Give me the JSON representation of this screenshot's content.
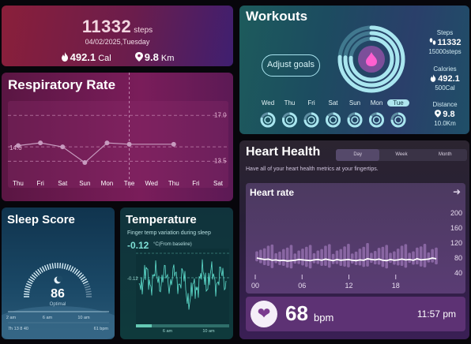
{
  "steps": {
    "count": "11332",
    "unit": "steps",
    "date": "04/02/2025,Tuesday",
    "calories_value": "492.1",
    "calories_unit": "Cal",
    "distance_value": "9.8",
    "distance_unit": "Km",
    "icons": {
      "calories": "flame-icon",
      "distance": "location-pin-icon"
    }
  },
  "respiratory": {
    "title": "Respiratory Rate",
    "chart_data": {
      "type": "line",
      "categories": [
        "Thu",
        "Fri",
        "Sat",
        "Sun",
        "Mon",
        "Tue",
        "Wed",
        "Thu",
        "Fri",
        "Sat"
      ],
      "values": [
        14.7,
        14.9,
        14.6,
        13.4,
        14.9,
        14.8,
        null,
        14.8,
        null,
        null
      ],
      "ytick_labels": [
        "17.0",
        "14.6",
        "13.5"
      ],
      "ylim": [
        12.5,
        17.5
      ]
    }
  },
  "workouts": {
    "title": "Workouts",
    "adjust_label": "Adjust goals",
    "center_icon": "flame-icon",
    "days": [
      {
        "label": "Wed",
        "progress": 0.8
      },
      {
        "label": "Thu",
        "progress": 0.8
      },
      {
        "label": "Fri",
        "progress": 0.75
      },
      {
        "label": "Sat",
        "progress": 0.85
      },
      {
        "label": "Sun",
        "progress": 0.8
      },
      {
        "label": "Mon",
        "progress": 0.85
      },
      {
        "label": "Tue",
        "progress": 0.75,
        "active": true
      }
    ],
    "stats": [
      {
        "label": "Steps",
        "value": "11332",
        "sub": "15000steps",
        "icon": "footsteps-icon"
      },
      {
        "label": "Calories",
        "value": "492.1",
        "sub": "500Cal",
        "icon": "flame-icon"
      },
      {
        "label": "Distance",
        "value": "9.8",
        "sub": "10.0Km",
        "icon": "location-pin-icon"
      }
    ],
    "ring_progress": 0.76
  },
  "heart": {
    "title": "Heart Health",
    "segments": [
      "Day",
      "Week",
      "Month"
    ],
    "active_segment": "Day",
    "description": "Have all of your heart health metrics at your fingertips.",
    "rate_title": "Heart rate",
    "chart_data": {
      "type": "line",
      "x_tick_labels": [
        "00",
        "06",
        "12",
        "18"
      ],
      "y_tick_labels": [
        "200",
        "160",
        "120",
        "80",
        "40"
      ],
      "ylim": [
        40,
        200
      ],
      "x_range": [
        0,
        24
      ],
      "line_values": [
        80,
        78,
        76,
        77,
        74,
        75,
        73,
        74,
        72,
        73,
        74,
        76,
        75,
        74,
        73,
        75,
        76,
        74,
        77,
        75,
        73,
        76,
        74,
        75,
        76,
        74,
        73,
        75,
        74,
        78,
        76,
        75,
        77,
        74,
        73,
        76,
        74,
        75,
        77,
        75,
        76,
        74,
        78,
        75,
        76,
        77,
        80,
        78
      ]
    },
    "bpm": "68",
    "bpm_unit": "bpm",
    "time": "11:57 pm",
    "icon": "heart-icon"
  },
  "sleep": {
    "title": "Sleep Score",
    "score": "86",
    "quality_label": "Optimal",
    "gauge_fraction": 0.86,
    "timeline_labels": [
      "2 am",
      "6 am",
      "10 am"
    ],
    "footer_left": "7h 13 8 40",
    "footer_right": "61 bpm"
  },
  "temperature": {
    "title": "Temperature",
    "subtitle": "Finger temp variation during sleep",
    "value": "-0.12",
    "unit": "°C(From baseline)",
    "y_tick_label": "-0.12",
    "x_labels": [
      "6 am",
      "10 am"
    ]
  },
  "colors": {
    "accent_teal": "#9fe0ea",
    "accent_pink": "#ff5fd0",
    "heart_line": "#ffffff"
  }
}
